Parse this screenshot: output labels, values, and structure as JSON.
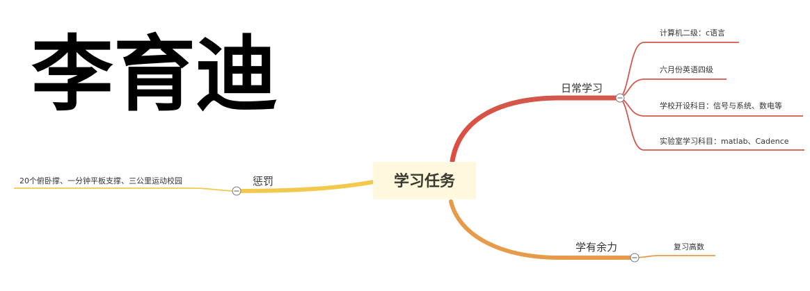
{
  "author_name": "李育迪",
  "root": {
    "label": "学习任务",
    "bg_color": "#fdf8de"
  },
  "branches": [
    {
      "label": "日常学习",
      "color": "#d4574b",
      "leaves": [
        "计算机二级：c语言",
        "六月份英语四级",
        "学校开设科目：信号与系统、数电等",
        "实验室学习科目：matlab、Cadence"
      ]
    },
    {
      "label": "学有余力",
      "color": "#e79a4a",
      "leaves": [
        "复习高数"
      ]
    },
    {
      "label": "惩罚",
      "color": "#f2c94c",
      "leaves": [
        "20个俯卧撑、一分钟平板支撑、三公里运动校园"
      ]
    }
  ]
}
